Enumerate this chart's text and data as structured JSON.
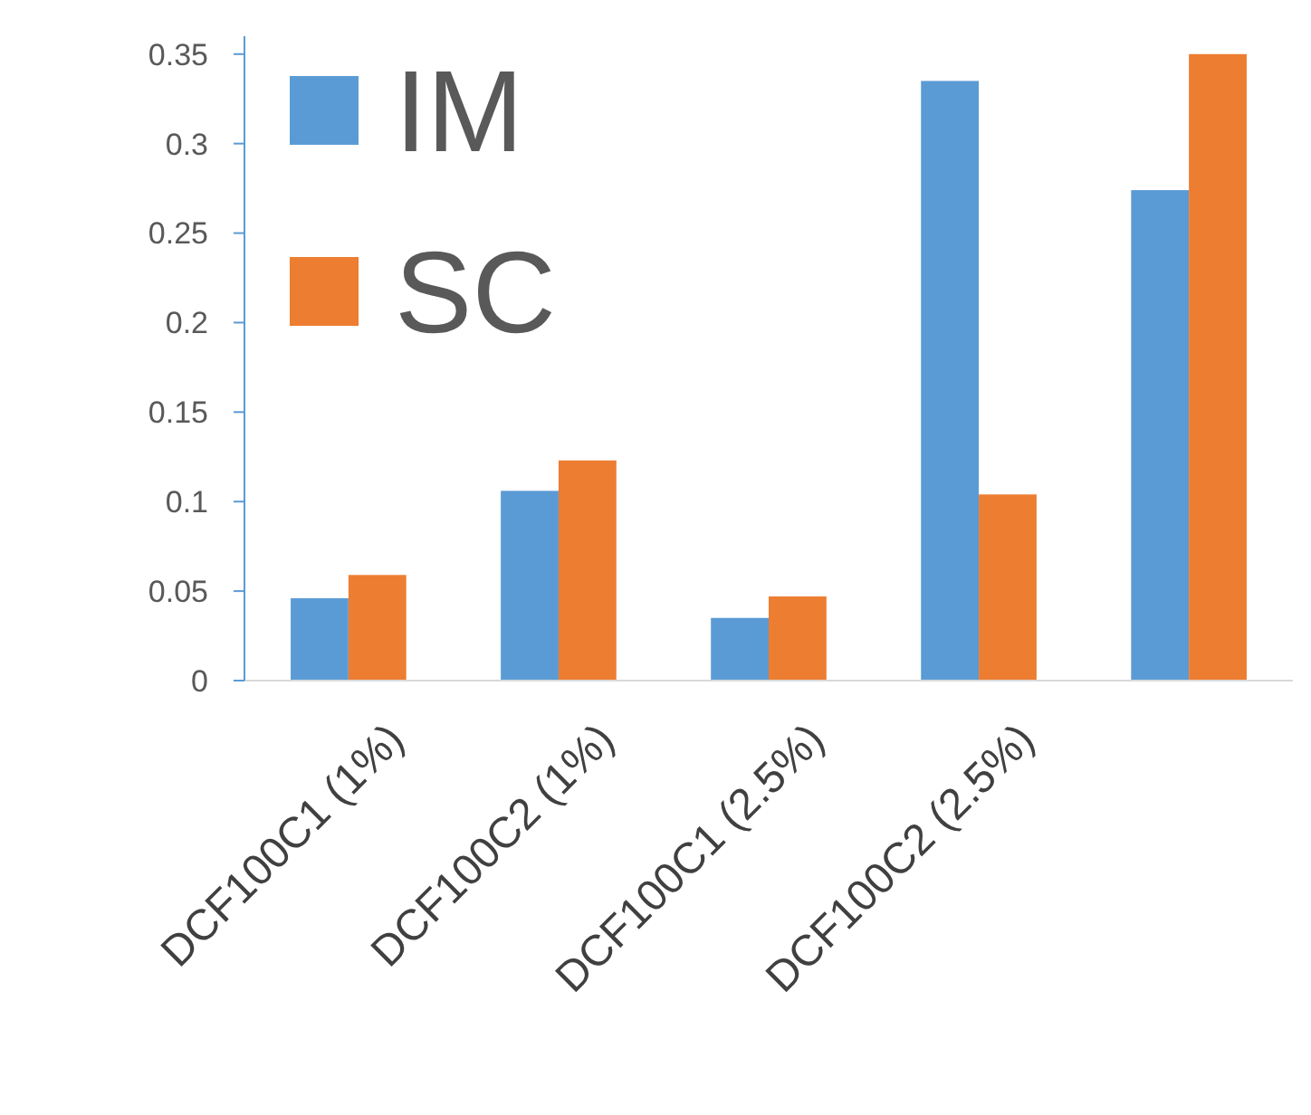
{
  "chart_data": {
    "type": "bar",
    "categories": [
      "DCF100C1 (1%)",
      "DCF100C2 (1%)",
      "DCF100C1 (2.5%)",
      "DCF100C2 (2.5%)",
      null
    ],
    "series": [
      {
        "name": "IM",
        "color": "#5b9bd5",
        "values": [
          0.046,
          0.106,
          0.035,
          0.335,
          0.274
        ]
      },
      {
        "name": "SC",
        "color": "#ed7d31",
        "values": [
          0.059,
          0.123,
          0.047,
          0.104,
          0.35
        ]
      }
    ],
    "ylim": [
      0,
      0.36
    ],
    "yticks": [
      0,
      0.05,
      0.1,
      0.15,
      0.2,
      0.25,
      0.3,
      0.35
    ],
    "grid": false,
    "legend": "top left"
  }
}
